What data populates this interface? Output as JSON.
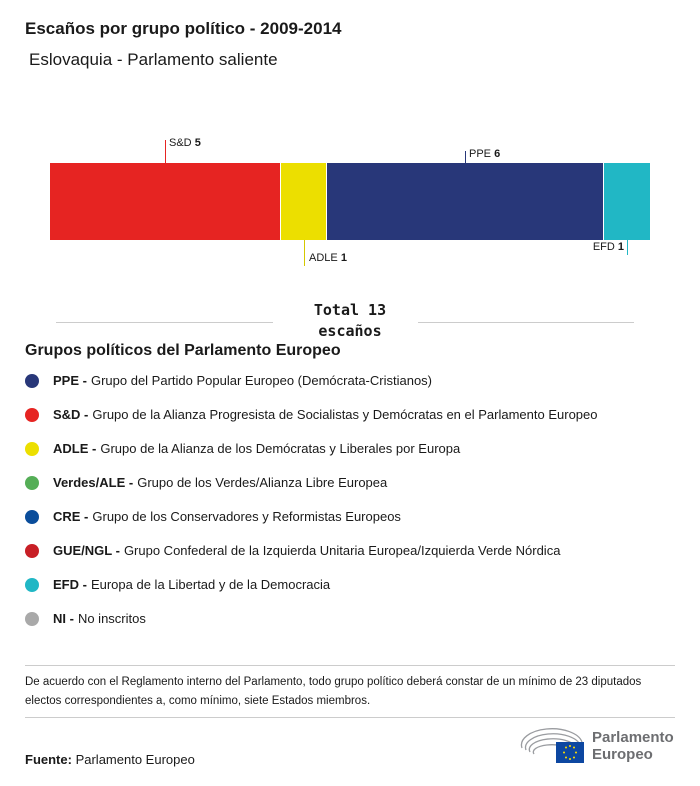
{
  "title": "Escaños por grupo político - 2009-2014",
  "subtitle": "Eslovaquia - Parlamento saliente",
  "chart_data": {
    "type": "bar",
    "orientation": "horizontal-stacked",
    "categories": [
      "S&D",
      "ADLE",
      "PPE",
      "EFD"
    ],
    "values": [
      5,
      1,
      6,
      1
    ],
    "colors": [
      "#e62422",
      "#ecdf00",
      "#283779",
      "#21b7c5"
    ],
    "label_positions": [
      "top",
      "bottom",
      "top",
      "bottom"
    ],
    "total": 13
  },
  "total_line1": "Total 13",
  "total_line2": "escaños",
  "legend": {
    "title": "Grupos políticos del Parlamento Europeo",
    "items": [
      {
        "abbr": "PPE -",
        "desc": "Grupo del Partido Popular Europeo (Demócrata-Cristianos)",
        "color": "#283779"
      },
      {
        "abbr": "S&D -",
        "desc": "Grupo de la Alianza Progresista de Socialistas y Demócratas en el Parlamento Europeo",
        "color": "#e62422"
      },
      {
        "abbr": "ADLE -",
        "desc": "Grupo de la Alianza de los Demócratas y Liberales por Europa",
        "color": "#ecdf00"
      },
      {
        "abbr": "Verdes/ALE -",
        "desc": "Grupo de los Verdes/Alianza Libre Europea",
        "color": "#55ae57"
      },
      {
        "abbr": "CRE -",
        "desc": "Grupo de los Conservadores y Reformistas Europeos",
        "color": "#0a4d9b"
      },
      {
        "abbr": "GUE/NGL -",
        "desc": "Grupo Confederal de la Izquierda Unitaria Europea/Izquierda Verde Nórdica",
        "color": "#c81f26"
      },
      {
        "abbr": "EFD -",
        "desc": "Europa de la Libertad y de la Democracia",
        "color": "#21b7c5"
      },
      {
        "abbr": "NI -",
        "desc": "No inscritos",
        "color": "#a9a9a9"
      }
    ]
  },
  "note": "De acuerdo con el Reglamento interno del Parlamento, todo grupo político deberá constar de un mínimo de 23 diputados electos correspondientes a, como mínimo, siete Estados miembros.",
  "source_label": "Fuente:",
  "source_value": "Parlamento Europeo",
  "logo": {
    "line1": "Parlamento",
    "line2": "Europeo"
  }
}
